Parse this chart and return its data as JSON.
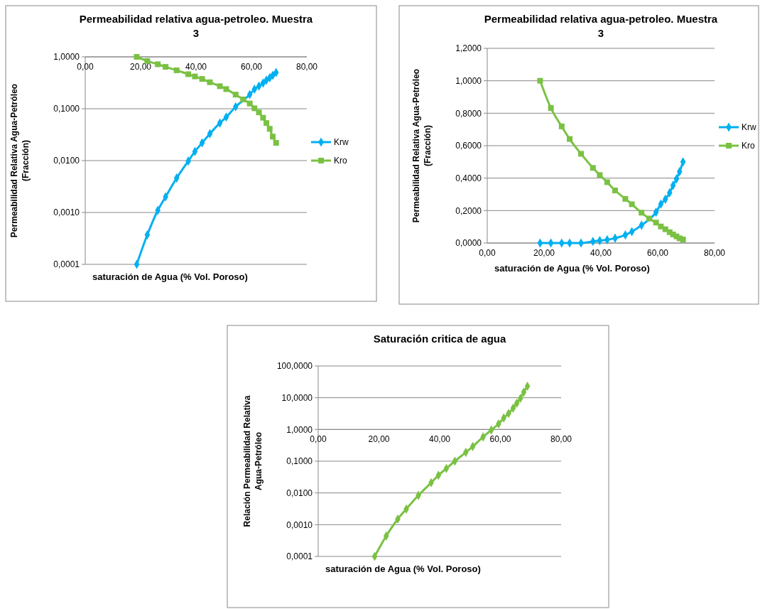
{
  "chart_data": [
    {
      "type": "line",
      "title": "Permeabilidad relativa agua-petroleo. Muestra 3",
      "xlabel": "saturación de Agua (% Vol. Poroso)",
      "ylabel": "Permeabilidad Relativa Agua-Petróleo (Fracción)",
      "log": "y",
      "grid": "y",
      "legend": "right",
      "xlim": [
        0,
        80
      ],
      "xticks": [
        {
          "value": 0,
          "label": "0,00"
        },
        {
          "value": 20,
          "label": "20,00"
        },
        {
          "value": 40,
          "label": "40,00"
        },
        {
          "value": 60,
          "label": "60,00"
        },
        {
          "value": 80,
          "label": "80,00"
        }
      ],
      "ylim": [
        0.0001,
        1
      ],
      "yticks": [
        {
          "value": 0.0001,
          "label": "0,0001"
        },
        {
          "value": 0.001,
          "label": "0,0010"
        },
        {
          "value": 0.01,
          "label": "0,0100"
        },
        {
          "value": 0.1,
          "label": "0,1000"
        },
        {
          "value": 1,
          "label": "1,0000"
        }
      ],
      "x": [
        18.6,
        22.4,
        26.2,
        29.0,
        33.0,
        37.2,
        39.6,
        42.2,
        45.0,
        48.6,
        50.9,
        54.3,
        57.0,
        59.4,
        61.1,
        62.7,
        64.2,
        65.4,
        66.6,
        67.7,
        68.9
      ],
      "series": [
        {
          "name": "Krw",
          "color": "#00b0f0",
          "marker": "diamond",
          "values": [
            0.0001,
            0.00037,
            0.0011,
            0.002,
            0.0046,
            0.0098,
            0.015,
            0.022,
            0.033,
            0.053,
            0.069,
            0.109,
            null,
            0.188,
            0.238,
            0.273,
            0.313,
            0.355,
            0.395,
            0.44,
            0.5
          ]
        },
        {
          "name": "Kro",
          "color": "#7ac143",
          "marker": "square",
          "values": [
            1.0,
            0.832,
            0.719,
            0.641,
            0.55,
            0.463,
            0.419,
            0.375,
            0.324,
            0.272,
            0.239,
            0.187,
            0.151,
            0.126,
            0.102,
            0.085,
            0.067,
            0.053,
            0.041,
            0.029,
            0.022
          ]
        }
      ]
    },
    {
      "type": "line",
      "title": "Permeabilidad relativa agua-petroleo. Muestra 3",
      "xlabel": "saturación de Agua (% Vol. Poroso)",
      "ylabel": "Permeabilidad Relativa Agua-Petróleo (Fracción)",
      "grid": "y",
      "legend": "right",
      "xlim": [
        0,
        80
      ],
      "xticks": [
        {
          "value": 0,
          "label": "0,00"
        },
        {
          "value": 20,
          "label": "20,00"
        },
        {
          "value": 40,
          "label": "40,00"
        },
        {
          "value": 60,
          "label": "60,00"
        },
        {
          "value": 80,
          "label": "80,00"
        }
      ],
      "ylim": [
        0,
        1.2
      ],
      "yticks": [
        {
          "value": 0,
          "label": "0,0000"
        },
        {
          "value": 0.2,
          "label": "0,2000"
        },
        {
          "value": 0.4,
          "label": "0,4000"
        },
        {
          "value": 0.6,
          "label": "0,6000"
        },
        {
          "value": 0.8,
          "label": "0,8000"
        },
        {
          "value": 1,
          "label": "1,0000"
        },
        {
          "value": 1.2,
          "label": "1,2000"
        }
      ],
      "x": [
        18.6,
        22.4,
        26.2,
        29.0,
        33.0,
        37.2,
        39.6,
        42.2,
        45.0,
        48.6,
        50.9,
        54.3,
        57.0,
        59.4,
        61.1,
        62.7,
        64.2,
        65.4,
        66.6,
        67.7,
        68.9
      ],
      "series": [
        {
          "name": "Krw",
          "color": "#00b0f0",
          "marker": "diamond",
          "values": [
            0,
            0,
            0,
            0,
            0,
            0.01,
            0.015,
            0.02,
            0.03,
            0.05,
            0.07,
            0.11,
            null,
            0.19,
            0.24,
            0.27,
            0.31,
            0.355,
            0.395,
            0.44,
            0.5
          ]
        },
        {
          "name": "Kro",
          "color": "#7ac143",
          "marker": "square",
          "values": [
            1.0,
            0.832,
            0.719,
            0.641,
            0.55,
            0.463,
            0.419,
            0.375,
            0.324,
            0.272,
            0.239,
            0.187,
            0.151,
            0.126,
            0.102,
            0.085,
            0.067,
            0.053,
            0.041,
            0.029,
            0.022
          ]
        }
      ]
    },
    {
      "type": "line",
      "title": "Saturación critica de agua",
      "xlabel": "saturación de Agua (% Vol. Poroso)",
      "ylabel": "Relación Permeabilidad Relativa Agua-Petróleo",
      "log": "y",
      "grid": "y",
      "xlim": [
        0,
        80
      ],
      "xticks": [
        {
          "value": 0,
          "label": "0,00"
        },
        {
          "value": 20,
          "label": "20,00"
        },
        {
          "value": 40,
          "label": "40,00"
        },
        {
          "value": 60,
          "label": "60,00"
        },
        {
          "value": 80,
          "label": "80,00"
        }
      ],
      "ylim": [
        0.0001,
        100
      ],
      "yticks": [
        {
          "value": 0.0001,
          "label": "0,0001"
        },
        {
          "value": 0.001,
          "label": "0,0010"
        },
        {
          "value": 0.01,
          "label": "0,0100"
        },
        {
          "value": 0.1,
          "label": "0,1000"
        },
        {
          "value": 1,
          "label": "1,0000"
        },
        {
          "value": 10,
          "label": "10,0000"
        },
        {
          "value": 100,
          "label": "100,0000"
        }
      ],
      "x": [
        18.6,
        22.4,
        26.2,
        29.0,
        33.0,
        37.2,
        39.6,
        42.2,
        45.0,
        48.6,
        50.9,
        54.3,
        57.0,
        59.4,
        61.1,
        62.7,
        64.2,
        65.4,
        66.6,
        67.7,
        68.9
      ],
      "series": [
        {
          "color": "#7ac143",
          "marker": "diamond",
          "values": [
            0.0001,
            0.00044,
            0.0015,
            0.0031,
            0.0084,
            0.021,
            0.036,
            0.059,
            0.1,
            0.19,
            0.29,
            0.58,
            0.96,
            1.5,
            2.3,
            3.2,
            4.7,
            6.7,
            9.6,
            15,
            23
          ]
        }
      ]
    }
  ]
}
